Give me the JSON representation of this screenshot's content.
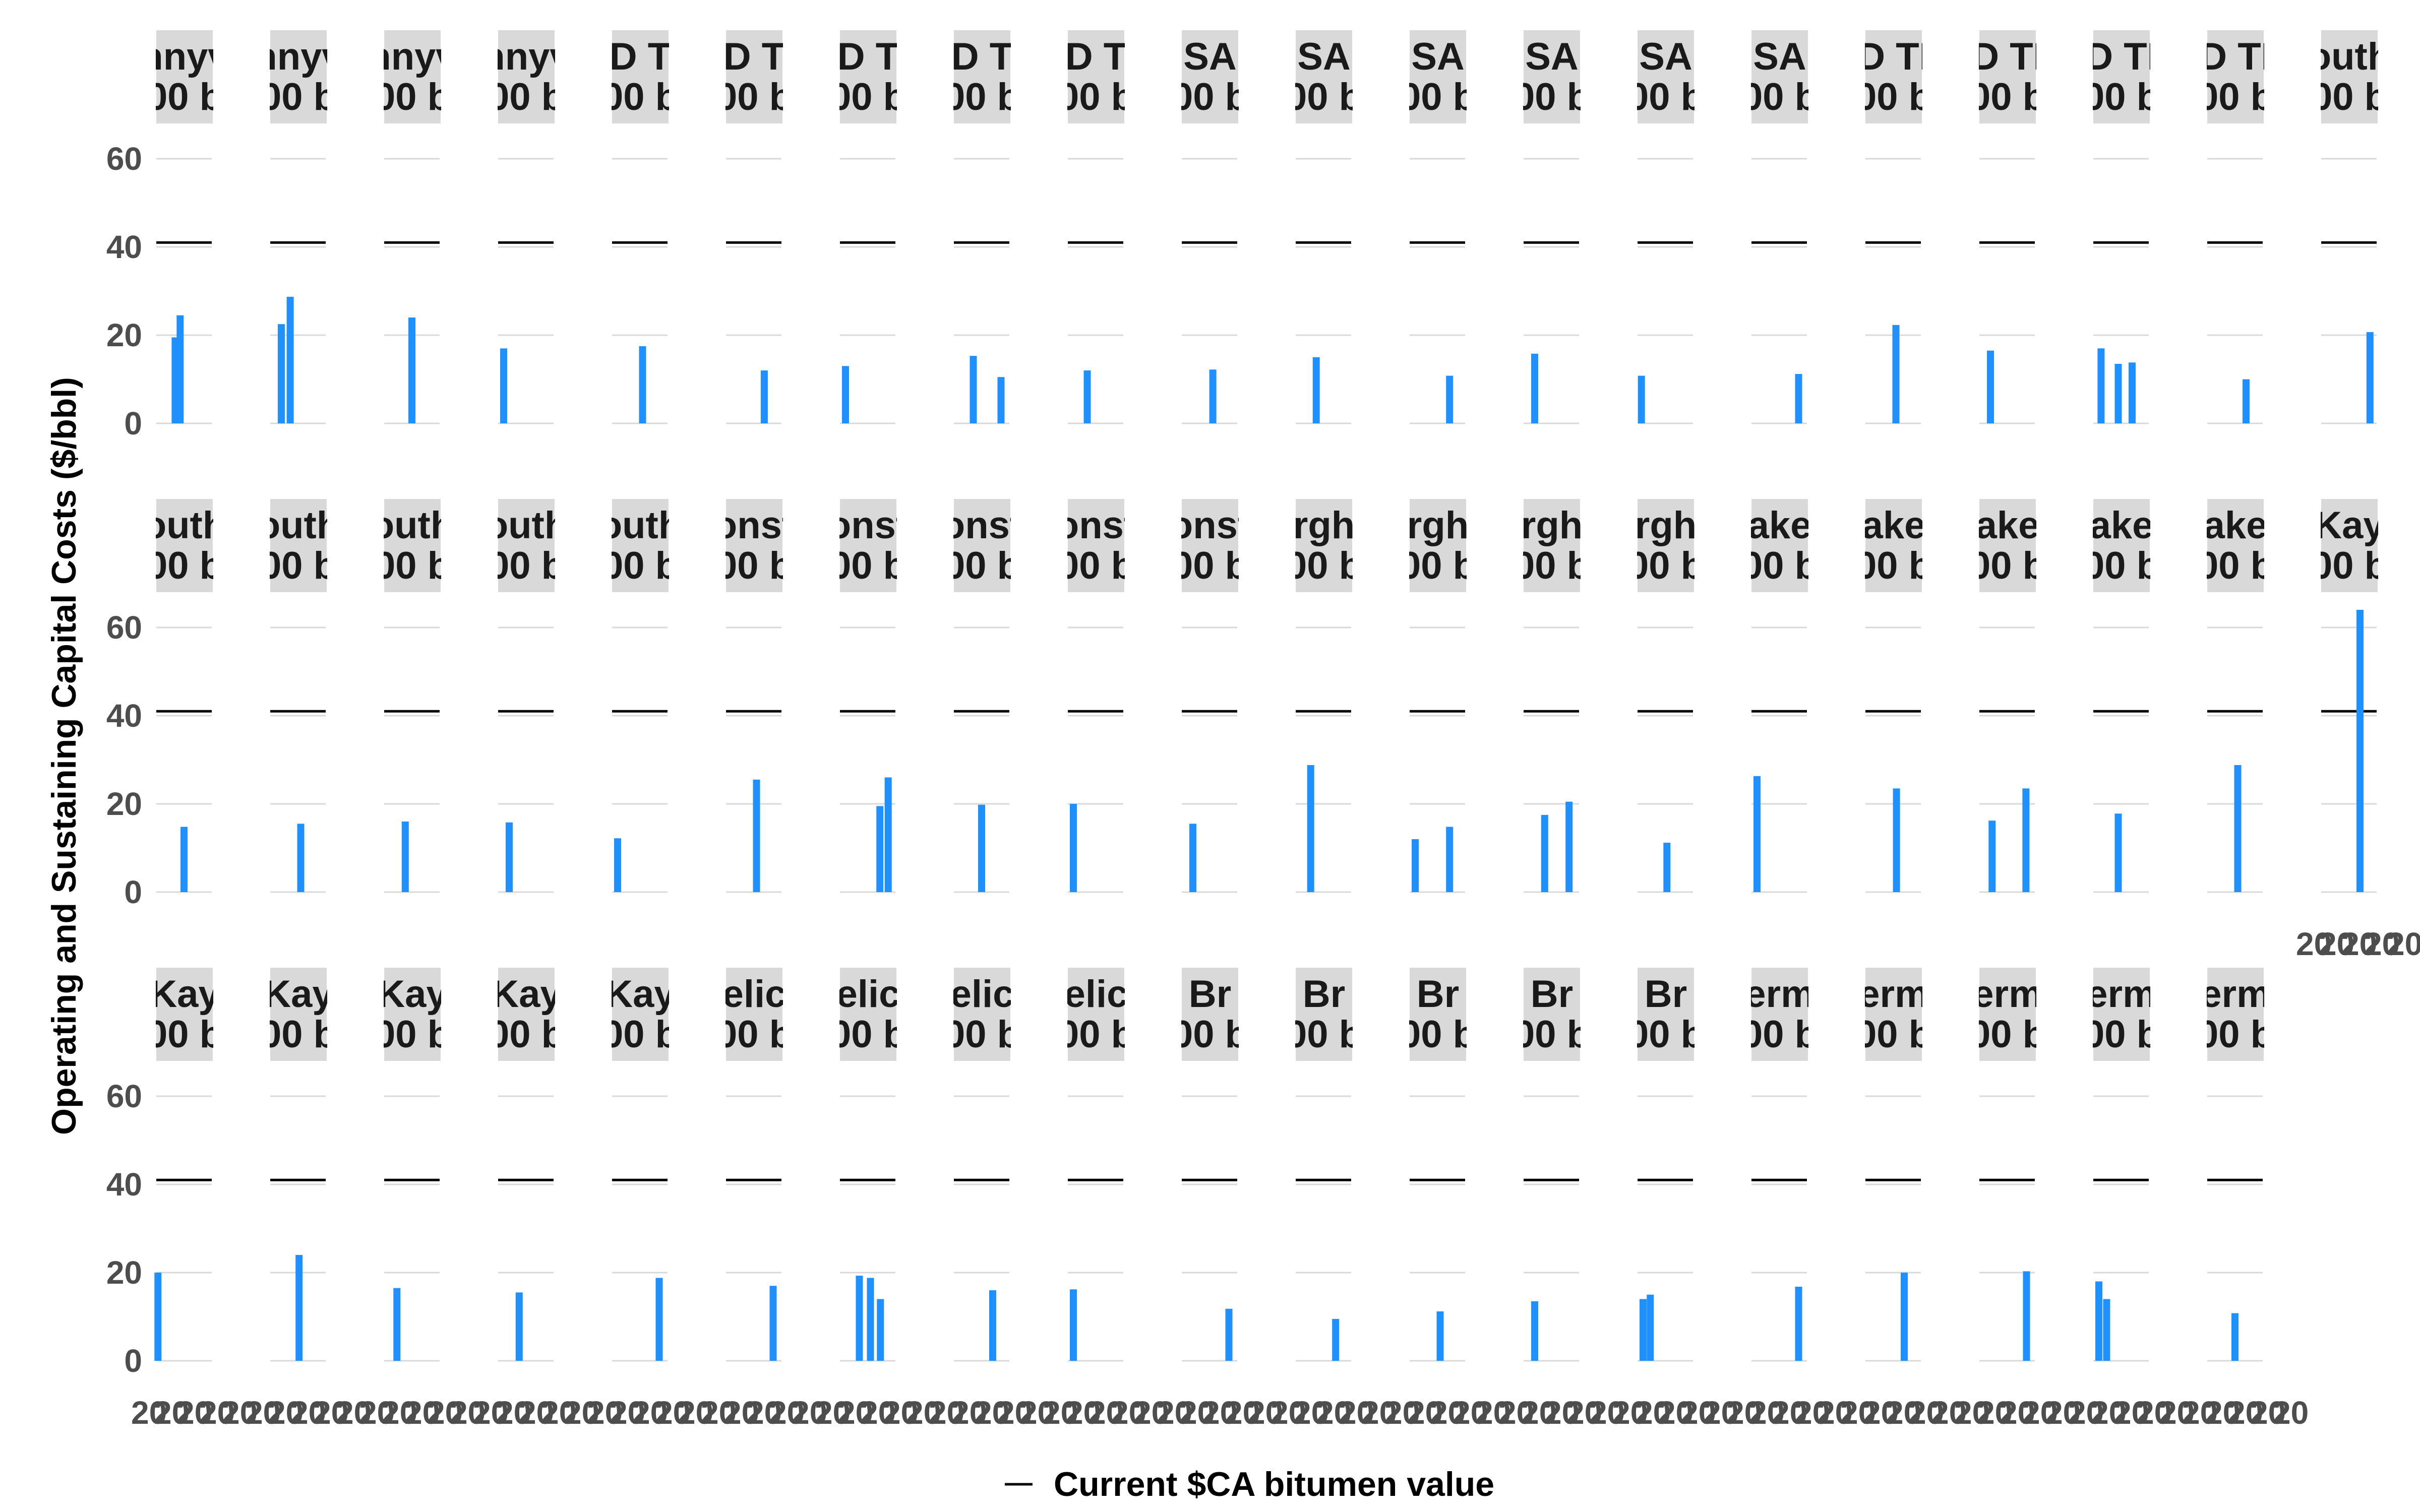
{
  "chart_data": {
    "type": "bar",
    "ylabel": "Operating and Sustaining Capital Costs ($/bbl)",
    "yticks": [
      0,
      20,
      40,
      60
    ],
    "ylim": [
      0,
      68
    ],
    "grid": true,
    "reference_line": {
      "label": "Current $CA bitumen value",
      "value": 41,
      "color": "#000000"
    },
    "bar_color": "#1e90ff",
    "legend_position": "bottom",
    "x_tick_label": "20",
    "panels": [
      {
        "strip": [
          "nnyv",
          "00 b"
        ],
        "values": [
          [
            0.34,
            19.5
          ],
          [
            0.43,
            24.5
          ]
        ]
      },
      {
        "strip": [
          "nnyv",
          "00 b"
        ],
        "values": [
          [
            0.2,
            22.5
          ],
          [
            0.36,
            28.7
          ]
        ]
      },
      {
        "strip": [
          "nnyv",
          "00 b"
        ],
        "values": [
          [
            0.5,
            24
          ]
        ]
      },
      {
        "strip": [
          "nnyv",
          "00 b"
        ],
        "values": [
          [
            0.1,
            17
          ]
        ]
      },
      {
        "strip": [
          "D T",
          "00 b"
        ],
        "values": [
          [
            0.55,
            17.5
          ]
        ]
      },
      {
        "strip": [
          "D T",
          "00 b"
        ],
        "values": [
          [
            0.69,
            12
          ]
        ]
      },
      {
        "strip": [
          "D T",
          "00 b"
        ],
        "values": [
          [
            0.1,
            13
          ]
        ]
      },
      {
        "strip": [
          "D T",
          "00 b"
        ],
        "values": [
          [
            0.35,
            15.3
          ],
          [
            0.85,
            10.5
          ]
        ]
      },
      {
        "strip": [
          "D T",
          "00 b"
        ],
        "values": [
          [
            0.35,
            12
          ]
        ]
      },
      {
        "strip": [
          "SA",
          "00 b"
        ],
        "values": [
          [
            0.56,
            12.2
          ]
        ]
      },
      {
        "strip": [
          "SA",
          "00 b"
        ],
        "values": [
          [
            0.37,
            15
          ]
        ]
      },
      {
        "strip": [
          "SA",
          "00 b"
        ],
        "values": [
          [
            0.72,
            10.8
          ]
        ]
      },
      {
        "strip": [
          "SA",
          "00 b"
        ],
        "values": [
          [
            0.2,
            15.8
          ]
        ]
      },
      {
        "strip": [
          "SA",
          "00 b"
        ],
        "values": [
          [
            0.07,
            10.8
          ]
        ]
      },
      {
        "strip": [
          "SA",
          "00 b"
        ],
        "values": [
          [
            0.85,
            11.2
          ]
        ]
      },
      {
        "strip": [
          "D TI",
          "00 b"
        ],
        "values": [
          [
            0.55,
            22.3
          ]
        ]
      },
      {
        "strip": [
          "D TI",
          "00 b"
        ],
        "values": [
          [
            0.2,
            16.5
          ]
        ]
      },
      {
        "strip": [
          "D TI",
          "00 b"
        ],
        "values": [
          [
            0.14,
            17
          ],
          [
            0.45,
            13.5
          ],
          [
            0.7,
            13.8
          ]
        ]
      },
      {
        "strip": [
          "D TI",
          "00 b"
        ],
        "values": [
          [
            0.7,
            10
          ]
        ]
      },
      {
        "strip": [
          "outh",
          "00 b"
        ],
        "values": [
          [
            0.88,
            20.7
          ]
        ]
      },
      {
        "strip": [
          "outh",
          "00 b"
        ],
        "values": [
          [
            0.5,
            14.8
          ]
        ]
      },
      {
        "strip": [
          "outh",
          "00 b"
        ],
        "values": [
          [
            0.55,
            15.5
          ]
        ]
      },
      {
        "strip": [
          "outh",
          "00 b"
        ],
        "values": [
          [
            0.38,
            16
          ]
        ]
      },
      {
        "strip": [
          "outh",
          "00 b"
        ],
        "values": [
          [
            0.2,
            15.8
          ]
        ]
      },
      {
        "strip": [
          "outh",
          "00 b"
        ],
        "values": [
          [
            0.1,
            12.2
          ]
        ]
      },
      {
        "strip": [
          "onst",
          "00 b"
        ],
        "values": [
          [
            0.55,
            25.5
          ]
        ]
      },
      {
        "strip": [
          "onst",
          "00 b"
        ],
        "values": [
          [
            0.72,
            19.5
          ],
          [
            0.87,
            26
          ]
        ]
      },
      {
        "strip": [
          "onst",
          "00 b"
        ],
        "values": [
          [
            0.5,
            19.8
          ]
        ]
      },
      {
        "strip": [
          "onst",
          "00 b"
        ],
        "values": [
          [
            0.1,
            20
          ]
        ]
      },
      {
        "strip": [
          "onst",
          "00 b"
        ],
        "values": [
          [
            0.2,
            15.5
          ]
        ]
      },
      {
        "strip": [
          "rgh",
          "00 b"
        ],
        "values": [
          [
            0.27,
            28.8
          ]
        ]
      },
      {
        "strip": [
          "rgh",
          "00 b"
        ],
        "values": [
          [
            0.1,
            12
          ],
          [
            0.72,
            14.8
          ]
        ]
      },
      {
        "strip": [
          "rgh",
          "00 b"
        ],
        "values": [
          [
            0.38,
            17.5
          ],
          [
            0.82,
            20.5
          ]
        ]
      },
      {
        "strip": [
          "rgh",
          "00 b"
        ],
        "values": [
          [
            0.53,
            11.2
          ]
        ]
      },
      {
        "strip": [
          "ake",
          "00 b"
        ],
        "values": [
          [
            0.1,
            26.3
          ]
        ]
      },
      {
        "strip": [
          "ake",
          "00 b"
        ],
        "values": [
          [
            0.56,
            23.5
          ]
        ]
      },
      {
        "strip": [
          "ake",
          "00 b"
        ],
        "values": [
          [
            0.23,
            16.2
          ],
          [
            0.84,
            23.5
          ]
        ]
      },
      {
        "strip": [
          "ake",
          "00 b"
        ],
        "values": [
          [
            0.45,
            17.8
          ]
        ]
      },
      {
        "strip": [
          "ake",
          "00 b"
        ],
        "values": [
          [
            0.55,
            28.8
          ]
        ]
      },
      {
        "strip": [
          "Kay",
          "00 b"
        ],
        "values": [
          [
            0.7,
            64
          ]
        ]
      },
      {
        "strip": [
          "Kay",
          "00 b"
        ],
        "values": [
          [
            0.03,
            20
          ]
        ]
      },
      {
        "strip": [
          "Kay",
          "00 b"
        ],
        "values": [
          [
            0.52,
            24
          ]
        ]
      },
      {
        "strip": [
          "Kay",
          "00 b"
        ],
        "values": [
          [
            0.23,
            16.5
          ]
        ]
      },
      {
        "strip": [
          "Kay",
          "00 b"
        ],
        "values": [
          [
            0.38,
            15.5
          ]
        ]
      },
      {
        "strip": [
          "Kay",
          "00 b"
        ],
        "values": [
          [
            0.85,
            18.8
          ]
        ]
      },
      {
        "strip": [
          "elic",
          "00 b"
        ],
        "values": [
          [
            0.85,
            17
          ]
        ]
      },
      {
        "strip": [
          "elic",
          "00 b"
        ],
        "values": [
          [
            0.35,
            19.3
          ],
          [
            0.55,
            18.8
          ],
          [
            0.73,
            14
          ]
        ]
      },
      {
        "strip": [
          "elic",
          "00 b"
        ],
        "values": [
          [
            0.7,
            16
          ]
        ]
      },
      {
        "strip": [
          "elic",
          "00 b"
        ],
        "values": [
          [
            0.1,
            16.2
          ]
        ]
      },
      {
        "strip": [
          "Br",
          "00 b"
        ],
        "values": [
          [
            0.85,
            11.8
          ]
        ]
      },
      {
        "strip": [
          "Br",
          "00 b"
        ],
        "values": [
          [
            0.72,
            9.5
          ]
        ]
      },
      {
        "strip": [
          "Br",
          "00 b"
        ],
        "values": [
          [
            0.55,
            11.2
          ]
        ]
      },
      {
        "strip": [
          "Br",
          "00 b"
        ],
        "values": [
          [
            0.2,
            13.5
          ]
        ]
      },
      {
        "strip": [
          "Br",
          "00 b"
        ],
        "values": [
          [
            0.1,
            14
          ],
          [
            0.23,
            15
          ]
        ]
      },
      {
        "strip": [
          "erm",
          "00 b"
        ],
        "values": [
          [
            0.85,
            16.8
          ]
        ]
      },
      {
        "strip": [
          "erm",
          "00 b"
        ],
        "values": [
          [
            0.7,
            20
          ]
        ]
      },
      {
        "strip": [
          "erm",
          "00 b"
        ],
        "values": [
          [
            0.85,
            20.3
          ]
        ]
      },
      {
        "strip": [
          "erm",
          "00 b"
        ],
        "values": [
          [
            0.1,
            18
          ],
          [
            0.24,
            14
          ]
        ]
      },
      {
        "strip": [
          "erm",
          "00 b"
        ],
        "values": [
          [
            0.5,
            10.8
          ]
        ]
      }
    ]
  }
}
